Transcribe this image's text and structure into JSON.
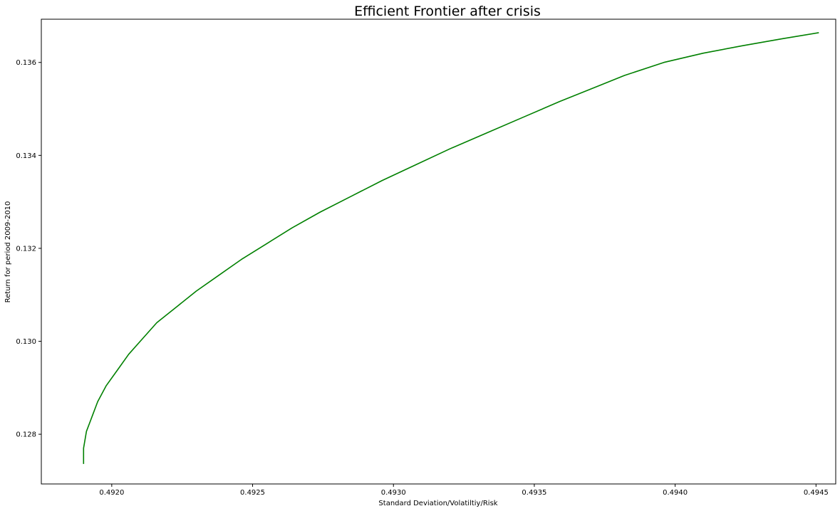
{
  "chart_data": {
    "type": "line",
    "title": "Efficient Frontier after crisis",
    "xlabel": "Standard Deviation/Volatiltiy/Risk",
    "ylabel": "Return for period 2009-2010",
    "xlim": [
      0.49175,
      0.49457
    ],
    "ylim": [
      0.12693,
      0.13693
    ],
    "xticks": [
      0.492,
      0.4925,
      0.493,
      0.4935,
      0.494,
      0.4945
    ],
    "xtick_labels": [
      "0.4920",
      "0.4925",
      "0.4930",
      "0.4935",
      "0.4940",
      "0.4945"
    ],
    "yticks": [
      0.128,
      0.13,
      0.132,
      0.134,
      0.136
    ],
    "ytick_labels": [
      "0.128",
      "0.130",
      "0.132",
      "0.134",
      "0.136"
    ],
    "grid": false,
    "colors": {
      "line": "#008000",
      "axes": "#000000",
      "background": "#ffffff"
    },
    "series": [
      {
        "x": [
          0.4919,
          0.4919,
          0.49191,
          0.49193,
          0.49195,
          0.49198,
          0.49202,
          0.49206,
          0.49211,
          0.49216,
          0.49223,
          0.4923,
          0.49238,
          0.49246,
          0.49255,
          0.49264,
          0.49274,
          0.49285,
          0.49296,
          0.49308,
          0.4932,
          0.49333,
          0.49346,
          0.49359,
          0.49373,
          0.49382,
          0.49396,
          0.4941,
          0.49424,
          0.49438,
          0.49451
        ],
        "y": [
          0.12736,
          0.1277,
          0.12806,
          0.12838,
          0.1287,
          0.12904,
          0.12938,
          0.12972,
          0.13006,
          0.1304,
          0.13074,
          0.13108,
          0.13142,
          0.13176,
          0.1321,
          0.13244,
          0.13278,
          0.13312,
          0.13346,
          0.1338,
          0.13414,
          0.13448,
          0.13482,
          0.13516,
          0.1355,
          0.13572,
          0.136,
          0.1362,
          0.13636,
          0.13651,
          0.13664
        ]
      }
    ]
  }
}
